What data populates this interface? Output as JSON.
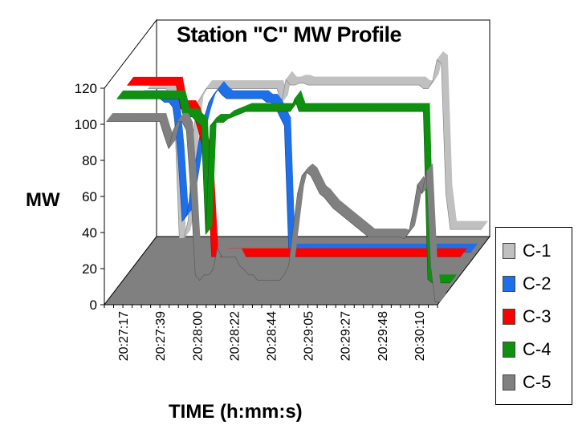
{
  "chart_data": {
    "type": "line",
    "title": "Station \"C\" MW Profile",
    "xlabel": "TIME (h:mm:s)",
    "ylabel": "MW",
    "ylim": [
      0,
      120
    ],
    "yticks": [
      "0",
      "20",
      "40",
      "60",
      "80",
      "100",
      "120"
    ],
    "xticks": [
      "20:27:17",
      "20:27:39",
      "20:28:00",
      "20:28:22",
      "20:28:44",
      "20:29:05",
      "20:29:27",
      "20:29:48",
      "20:30:10"
    ],
    "grid": false,
    "legend_position": "right",
    "series": [
      {
        "name": "C-1",
        "color": "#c0c0c0",
        "values": [
          88,
          88,
          88,
          88,
          88,
          85,
          70,
          5,
          5,
          15,
          60,
          80,
          84,
          88,
          88,
          88,
          88,
          88,
          88,
          88,
          88,
          88,
          88,
          88,
          88,
          88,
          88,
          88,
          88,
          88,
          80,
          93,
          90,
          90,
          91,
          91,
          90,
          90,
          90,
          90,
          90,
          90,
          90,
          90,
          90,
          90,
          90,
          90,
          90,
          90,
          90,
          90,
          90,
          90,
          90,
          90,
          90,
          90,
          90,
          90,
          90,
          90,
          88,
          88,
          92,
          104,
          102,
          30,
          10,
          10,
          10,
          10,
          10,
          10,
          10,
          10
        ]
      },
      {
        "name": "C-2",
        "color": "#1f6fe8",
        "values": [
          90,
          90,
          90,
          90,
          90,
          90,
          88,
          88,
          85,
          60,
          22,
          25,
          40,
          55,
          70,
          80,
          88,
          92,
          95,
          92,
          90,
          90,
          90,
          90,
          90,
          90,
          90,
          90,
          90,
          88,
          88,
          85,
          80,
          75,
          5,
          5,
          5,
          5,
          5,
          5,
          5,
          5,
          5,
          5,
          5,
          5,
          5,
          5,
          5,
          5,
          5,
          5,
          5,
          5,
          5,
          5,
          5,
          5,
          5,
          5,
          5,
          5,
          5,
          5,
          5,
          5,
          5,
          5,
          5,
          5,
          5,
          5,
          5,
          5,
          5,
          5
        ]
      },
      {
        "name": "C-3",
        "color": "#ff0000",
        "values": [
          105,
          105,
          105,
          105,
          105,
          105,
          105,
          105,
          105,
          105,
          105,
          105,
          92,
          92,
          92,
          88,
          80,
          70,
          55,
          10,
          10,
          10,
          10,
          10,
          10,
          10,
          10,
          10,
          10,
          10,
          10,
          10,
          10,
          10,
          10,
          10,
          10,
          10,
          10,
          10,
          10,
          10,
          10,
          10,
          10,
          10,
          10,
          10,
          10,
          10,
          10,
          10,
          10,
          10,
          10,
          10,
          10,
          10,
          10,
          10,
          10,
          10,
          10,
          10,
          10,
          10,
          10,
          10,
          10,
          10,
          10,
          10,
          10,
          10,
          10,
          10
        ]
      },
      {
        "name": "C-4",
        "color": "#109010",
        "values": [
          105,
          105,
          105,
          105,
          105,
          105,
          105,
          105,
          105,
          105,
          105,
          105,
          105,
          105,
          105,
          95,
          95,
          95,
          92,
          90,
          30,
          90,
          92,
          92,
          92,
          94,
          95,
          96,
          97,
          98,
          98,
          98,
          98,
          98,
          98,
          98,
          98,
          98,
          98,
          98,
          105,
          98,
          98,
          98,
          98,
          98,
          98,
          98,
          98,
          98,
          98,
          98,
          98,
          98,
          98,
          98,
          98,
          98,
          98,
          98,
          98,
          98,
          98,
          98,
          98,
          98,
          98,
          98,
          98,
          98,
          5,
          3,
          3,
          3,
          3,
          3
        ]
      },
      {
        "name": "C-5",
        "color": "#808080",
        "values": [
          100,
          100,
          100,
          100,
          100,
          100,
          100,
          100,
          100,
          100,
          100,
          100,
          100,
          92,
          85,
          95,
          100,
          100,
          95,
          60,
          15,
          12,
          15,
          15,
          18,
          30,
          25,
          25,
          25,
          25,
          20,
          18,
          15,
          15,
          12,
          12,
          12,
          12,
          12,
          12,
          15,
          20,
          40,
          60,
          70,
          72,
          70,
          65,
          60,
          58,
          55,
          52,
          50,
          48,
          46,
          44,
          42,
          40,
          38,
          36,
          36,
          36,
          36,
          36,
          36,
          36,
          36,
          35,
          38,
          50,
          65,
          60,
          72,
          20,
          0,
          0
        ]
      }
    ]
  }
}
